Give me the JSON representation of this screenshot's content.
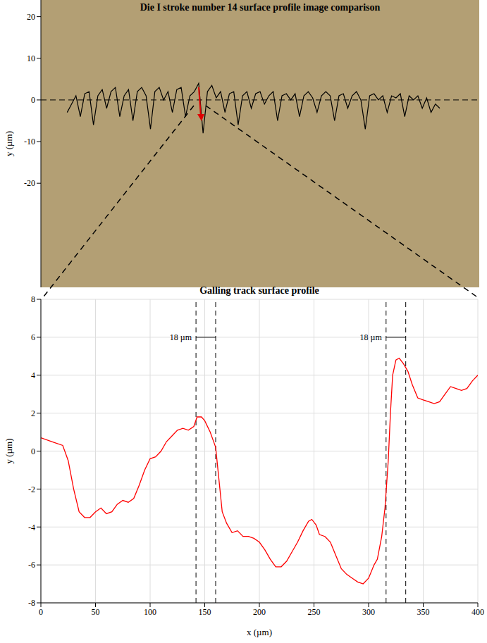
{
  "chart_data": [
    {
      "type": "line",
      "title": "Die I stroke number 14 surface profile image comparison",
      "y_label": "y (µm)",
      "xlim": [
        0,
        100
      ],
      "ylim": [
        -45,
        24
      ],
      "yticks": [
        20,
        10,
        0,
        -10,
        -20
      ],
      "tick_labels": "y",
      "color": "#000000",
      "hlines": [
        0
      ],
      "x": [
        6,
        7,
        8,
        9,
        10,
        11,
        12,
        13,
        14,
        15,
        16,
        17,
        18,
        19,
        20,
        21,
        22,
        23,
        24,
        25,
        26,
        27,
        28,
        29,
        30,
        31,
        32,
        33,
        34,
        35,
        36,
        37,
        38,
        39,
        40,
        41,
        42,
        43,
        44,
        45,
        46,
        47,
        48,
        49,
        50,
        51,
        52,
        53,
        54,
        55,
        56,
        57,
        58,
        59,
        60,
        61,
        62,
        63,
        64,
        65,
        66,
        67,
        68,
        69,
        70,
        71,
        72,
        73,
        74,
        75,
        76,
        77,
        78,
        79,
        80,
        81,
        82,
        83,
        84,
        85,
        86,
        87,
        88,
        89,
        90,
        91
      ],
      "values": [
        -3,
        -1,
        1,
        -4,
        1.5,
        2,
        -6,
        1,
        2.5,
        -2,
        2,
        3,
        -4,
        1,
        2.5,
        -5,
        2,
        3,
        1,
        -7,
        2,
        3,
        0,
        2,
        -3,
        2.5,
        3,
        -4,
        1,
        2,
        4,
        -8,
        2,
        3.5,
        0.5,
        2,
        -3,
        1.5,
        2,
        -6,
        1,
        2,
        -2,
        1.5,
        2,
        -1,
        1,
        2,
        -5,
        1,
        1.5,
        0,
        1.5,
        -4,
        1,
        2,
        0.5,
        -3,
        1,
        2,
        1,
        -5,
        1,
        1.5,
        -2,
        1,
        2,
        0,
        -7,
        1,
        1.5,
        0,
        1,
        -3,
        1,
        0.5,
        1.5,
        -4,
        1,
        0,
        1,
        -2,
        0.5,
        -3,
        -1,
        -2
      ]
    },
    {
      "type": "line",
      "title": "Galling track surface profile",
      "x_label": "x (µm)",
      "y_label": "y (µm)",
      "xlim": [
        0,
        400
      ],
      "ylim": [
        -8,
        8
      ],
      "xticks": [
        0,
        50,
        100,
        150,
        200,
        250,
        300,
        350,
        400
      ],
      "yticks": [
        -8,
        -6,
        -4,
        -2,
        0,
        2,
        4,
        6,
        8
      ],
      "grid": true,
      "color": "#ff0000",
      "vlines": [
        142,
        160,
        316,
        334
      ],
      "annotations": [
        {
          "text": "18 µm",
          "x": [
            142,
            160
          ],
          "y": 6
        },
        {
          "text": "18 µm",
          "x": [
            316,
            334
          ],
          "y": 6
        }
      ],
      "x": [
        0,
        10,
        20,
        25,
        30,
        35,
        40,
        45,
        50,
        55,
        60,
        65,
        70,
        75,
        80,
        85,
        90,
        95,
        100,
        105,
        110,
        115,
        120,
        125,
        130,
        135,
        140,
        143,
        147,
        150,
        155,
        160,
        163,
        166,
        170,
        175,
        180,
        185,
        190,
        195,
        200,
        205,
        210,
        215,
        220,
        225,
        230,
        235,
        240,
        245,
        248,
        252,
        255,
        260,
        265,
        270,
        275,
        280,
        285,
        290,
        295,
        300,
        305,
        308,
        312,
        315,
        318,
        320,
        322,
        325,
        328,
        332,
        336,
        340,
        345,
        350,
        355,
        360,
        365,
        370,
        375,
        380,
        385,
        390,
        395,
        400
      ],
      "values": [
        0.7,
        0.5,
        0.3,
        -0.5,
        -2,
        -3.2,
        -3.5,
        -3.5,
        -3.2,
        -3,
        -3.3,
        -3.2,
        -2.8,
        -2.6,
        -2.7,
        -2.5,
        -1.8,
        -1,
        -0.4,
        -0.3,
        0,
        0.5,
        0.8,
        1.1,
        1.2,
        1.1,
        1.3,
        1.8,
        1.8,
        1.6,
        1,
        0.2,
        -1.5,
        -3.2,
        -3.8,
        -4.3,
        -4.2,
        -4.5,
        -4.5,
        -4.6,
        -4.8,
        -5.2,
        -5.7,
        -6.1,
        -6.1,
        -5.8,
        -5.3,
        -4.8,
        -4.2,
        -3.7,
        -3.6,
        -3.9,
        -4.4,
        -4.5,
        -4.8,
        -5.5,
        -6.2,
        -6.5,
        -6.7,
        -6.9,
        -7,
        -6.7,
        -6,
        -5.7,
        -4.5,
        -3,
        -0.5,
        2,
        4,
        4.8,
        4.9,
        4.6,
        4.2,
        3.5,
        2.8,
        2.7,
        2.6,
        2.5,
        2.6,
        3,
        3.4,
        3.3,
        3.2,
        3.3,
        3.7,
        4
      ]
    }
  ]
}
